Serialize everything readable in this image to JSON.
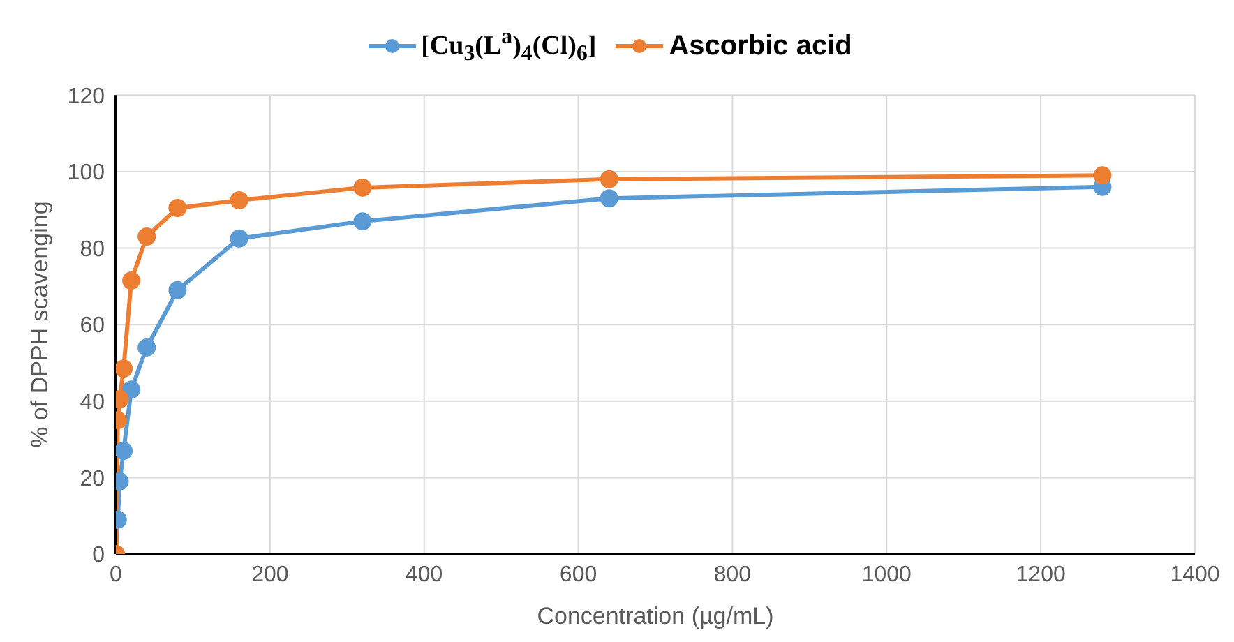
{
  "chart_data": {
    "type": "line",
    "xlabel": "Concentration (µg/mL)",
    "ylabel": "% of DPPH scavenging",
    "x": [
      0,
      2.5,
      5,
      10,
      20,
      40,
      80,
      160,
      320,
      640,
      1280
    ],
    "series": [
      {
        "name": "[Cu$_{3}$(L$^{a}$)$_{4}$(Cl)$_{6}$]",
        "color": "#5b9bd5",
        "values": [
          0,
          9,
          19,
          27,
          43,
          54,
          69,
          82.5,
          87,
          93,
          96
        ]
      },
      {
        "name": "Ascorbic acid",
        "color": "#ed7d31",
        "values": [
          0,
          35,
          40.5,
          48.5,
          71.5,
          83,
          90.5,
          92.5,
          95.8,
          98,
          99
        ]
      }
    ],
    "xlim": [
      0,
      1400
    ],
    "xticks": [
      0,
      200,
      400,
      600,
      800,
      1000,
      1200,
      1400
    ],
    "ylim": [
      0,
      120
    ],
    "yticks": [
      0,
      20,
      40,
      60,
      80,
      100,
      120
    ],
    "grid": true,
    "legend": "top",
    "marker": "circle",
    "line_style": "solid"
  }
}
